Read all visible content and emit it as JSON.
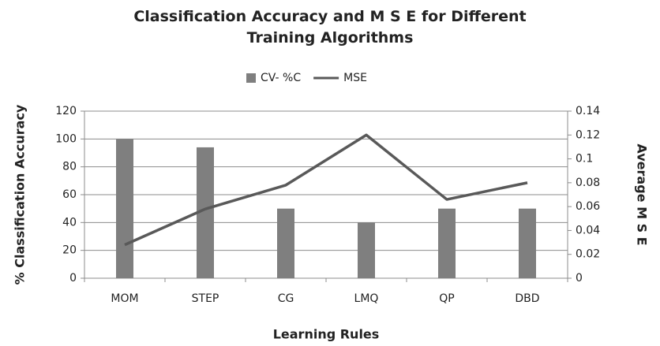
{
  "chart_data": {
    "type": "bar_line",
    "title": "Classification Accuracy and M S E for Different Training Algorithms",
    "x_label": "Learning Rules",
    "y_label": "% Classification  Accuracy",
    "y2_label": "Average M S E",
    "categories": [
      "MOM",
      "STEP",
      "CG",
      "LMQ",
      "QP",
      "DBD"
    ],
    "series": [
      {
        "name": "CV- %C",
        "type": "bar",
        "color": "#7f7f7f",
        "values": [
          100,
          94,
          50,
          40,
          50,
          50
        ]
      },
      {
        "name": "MSE",
        "type": "line",
        "axis": "y2",
        "color": "#595959",
        "values": [
          0.028,
          0.058,
          0.078,
          0.12,
          0.066,
          0.08
        ]
      }
    ],
    "ylim": [
      0,
      120
    ],
    "yticks": [
      0,
      20,
      40,
      60,
      80,
      100,
      120
    ],
    "y2lim": [
      0,
      0.14
    ],
    "y2ticks": [
      0,
      0.02,
      0.04,
      0.06,
      0.08,
      0.1,
      0.12,
      0.14
    ],
    "grid": true,
    "legend": "top"
  }
}
